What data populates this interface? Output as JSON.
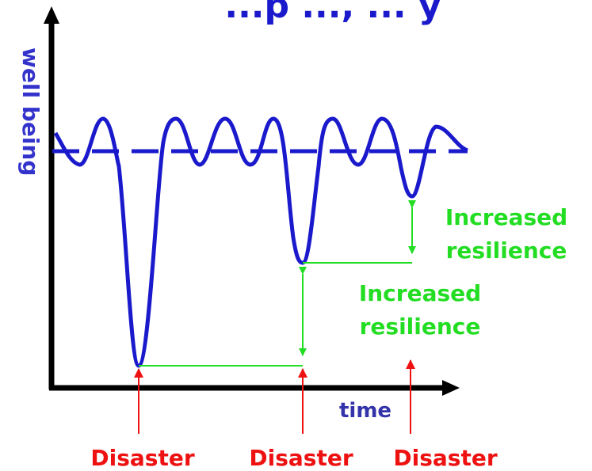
{
  "title_fragment": "...p ..., ... y",
  "axes": {
    "y_label": "well being",
    "x_label": "time"
  },
  "annotations": {
    "resilience_1": {
      "line1": "Increased",
      "line2": "resilience"
    },
    "resilience_2": {
      "line1": "Increased",
      "line2": "resilience"
    }
  },
  "events": [
    {
      "label": "Disaster"
    },
    {
      "label": "Disaster"
    },
    {
      "label": "Disaster"
    }
  ],
  "colors": {
    "curve": "#1a1acc",
    "axis": "#000000",
    "resilience": "#22dd22",
    "disaster": "#ee1111",
    "y_label": "#3333cc",
    "x_label": "#3333aa"
  }
}
